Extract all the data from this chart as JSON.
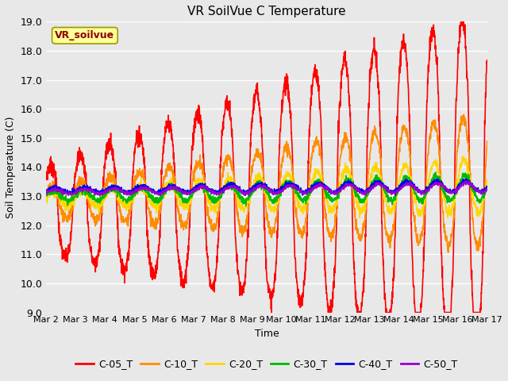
{
  "title": "VR SoilVue C Temperature",
  "xlabel": "Time",
  "ylabel": "Soil Temperature (C)",
  "ylim": [
    9.0,
    19.0
  ],
  "yticks": [
    9.0,
    10.0,
    11.0,
    12.0,
    13.0,
    14.0,
    15.0,
    16.0,
    17.0,
    18.0,
    19.0
  ],
  "xtick_labels": [
    "Mar 2",
    "Mar 3",
    "Mar 4",
    "Mar 5",
    "Mar 6",
    "Mar 7",
    "Mar 8",
    "Mar 9",
    "Mar 10",
    "Mar 11",
    "Mar 12",
    "Mar 13",
    "Mar 14",
    "Mar 15",
    "Mar 16",
    "Mar 17"
  ],
  "annotation": "VR_soilvue",
  "annotation_color": "#8B0000",
  "annotation_bg": "#FFFF99",
  "annotation_edge": "#999900",
  "bg_color": "#E8E8E8",
  "lines": {
    "C-05_T": {
      "color": "#FF0000",
      "lw": 1.2
    },
    "C-10_T": {
      "color": "#FF8C00",
      "lw": 1.2
    },
    "C-20_T": {
      "color": "#FFD700",
      "lw": 1.2
    },
    "C-30_T": {
      "color": "#00BB00",
      "lw": 1.2
    },
    "C-40_T": {
      "color": "#0000EE",
      "lw": 1.2
    },
    "C-50_T": {
      "color": "#9900CC",
      "lw": 1.2
    }
  },
  "legend_entries": [
    "C-05_T",
    "C-10_T",
    "C-20_T",
    "C-30_T",
    "C-40_T",
    "C-50_T"
  ]
}
